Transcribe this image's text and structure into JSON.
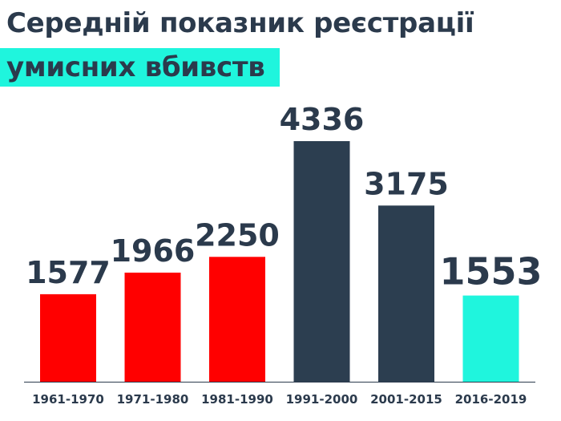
{
  "header": {
    "title_line1": "Середній показник реєстрації",
    "title_line2": "умисних вбивств"
  },
  "colors": {
    "text": "#2b3a4c",
    "red": "#ff0000",
    "dark": "#2c3e50",
    "cyan": "#1ff5dd"
  },
  "chart_data": {
    "type": "bar",
    "title": "Середній показник реєстрації умисних вбивств",
    "categories": [
      "1961-1970",
      "1971-1980",
      "1981-1990",
      "1991-2000",
      "2001-2015",
      "2016-2019"
    ],
    "values": [
      1577,
      1966,
      2250,
      4336,
      3175,
      1553
    ],
    "bar_colors": [
      "#ff0000",
      "#ff0000",
      "#ff0000",
      "#2c3e50",
      "#2c3e50",
      "#1ff5dd"
    ],
    "ylim": [
      0,
      4336
    ],
    "grid": false,
    "legend": "none"
  }
}
